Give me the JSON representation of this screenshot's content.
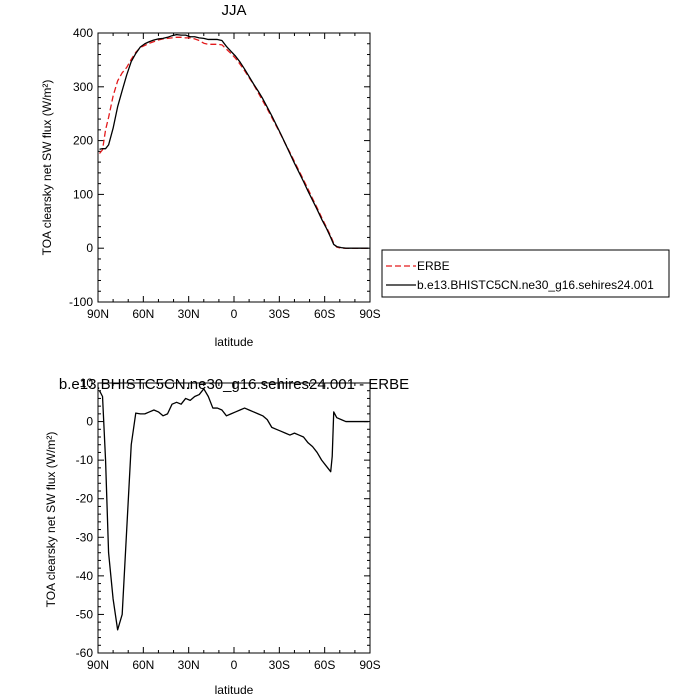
{
  "chart_data": [
    {
      "type": "line",
      "title": "JJA",
      "xlabel": "latitude",
      "ylabel": "TOA clearsky net SW flux (W/m²)",
      "xlim": [
        90,
        -90
      ],
      "ylim": [
        -100,
        400
      ],
      "x_tick_values": [
        90,
        60,
        30,
        0,
        -30,
        -60,
        -90
      ],
      "x_tick_labels": [
        "90N",
        "60N",
        "30N",
        "0",
        "30S",
        "60S",
        "90S"
      ],
      "y_tick_values": [
        -100,
        0,
        100,
        200,
        300,
        400
      ],
      "y_tick_labels": [
        "-100",
        "0",
        "100",
        "200",
        "300",
        "400"
      ],
      "legend_position": "right",
      "series": [
        {
          "name": "ERBE",
          "color": "#e31a1c",
          "dash": "dashed",
          "x": [
            89,
            87,
            85,
            83,
            80,
            77,
            74,
            71,
            68,
            65,
            62,
            59,
            56,
            53,
            50,
            47,
            44,
            41,
            38,
            35,
            32,
            29,
            26,
            23,
            20,
            17,
            14,
            11,
            8,
            5,
            2,
            -1,
            -4,
            -7,
            -10,
            -13,
            -16,
            -19,
            -22,
            -25,
            -28,
            -31,
            -34,
            -37,
            -40,
            -43,
            -46,
            -49,
            -52,
            -55,
            -58,
            -61,
            -64,
            -66,
            -68,
            -71,
            -74,
            -77,
            -80,
            -83,
            -86,
            -89
          ],
          "y": [
            176,
            183,
            220,
            243,
            283,
            311,
            326,
            336,
            351,
            364,
            373,
            377,
            381,
            384,
            387,
            389,
            390,
            391,
            392,
            392,
            391,
            391,
            389,
            386,
            381,
            379,
            379,
            379,
            378,
            370,
            362,
            353,
            342,
            330,
            317,
            304,
            289,
            274,
            259,
            243,
            227,
            211,
            194,
            178,
            161,
            144,
            127,
            110,
            92,
            75,
            57,
            40,
            23,
            9,
            2,
            0,
            0,
            0,
            0,
            0,
            0,
            0
          ]
        },
        {
          "name": "b.e13.BHISTC5CN.ne30_g16.sehires24.001",
          "color": "#000000",
          "dash": "solid",
          "x": [
            89,
            87,
            85,
            83,
            80,
            77,
            74,
            71,
            68,
            65,
            62,
            59,
            56,
            53,
            50,
            47,
            44,
            41,
            38,
            35,
            32,
            29,
            26,
            23,
            20,
            17,
            14,
            11,
            8,
            5,
            2,
            -1,
            -4,
            -7,
            -10,
            -13,
            -16,
            -19,
            -22,
            -25,
            -28,
            -31,
            -34,
            -37,
            -40,
            -43,
            -46,
            -49,
            -52,
            -55,
            -58,
            -61,
            -64,
            -66,
            -68,
            -71,
            -74,
            -77,
            -80,
            -83,
            -86,
            -89
          ],
          "y": [
            184,
            185,
            185,
            192,
            223,
            263,
            293,
            322,
            347,
            362,
            374,
            380,
            384,
            387,
            389,
            390,
            392,
            395,
            397,
            396,
            396,
            393,
            393,
            391,
            390,
            388,
            388,
            388,
            386,
            375,
            366,
            357,
            346,
            333,
            319,
            305,
            292,
            278,
            262,
            246,
            229,
            212,
            194,
            176,
            158,
            141,
            124,
            106,
            89,
            72,
            54,
            38,
            20,
            7,
            3,
            1,
            0,
            0,
            0,
            0,
            0,
            0
          ]
        }
      ]
    },
    {
      "type": "line",
      "title": "b.e13.BHISTC5CN.ne30_g16.sehires24.001 - ERBE",
      "xlabel": "latitude",
      "ylabel": "TOA clearsky net SW flux (W/m²)",
      "xlim": [
        90,
        -90
      ],
      "ylim": [
        -60,
        10
      ],
      "x_tick_values": [
        90,
        60,
        30,
        0,
        -30,
        -60,
        -90
      ],
      "x_tick_labels": [
        "90N",
        "60N",
        "30N",
        "0",
        "30S",
        "60S",
        "90S"
      ],
      "y_tick_values": [
        -60,
        -50,
        -40,
        -30,
        -20,
        -10,
        0,
        10
      ],
      "y_tick_labels": [
        "-60",
        "-50",
        "-40",
        "-30",
        "-20",
        "-10",
        "0",
        "10"
      ],
      "series": [
        {
          "color": "#000000",
          "dash": "solid",
          "x": [
            89,
            87,
            85,
            83,
            80,
            77,
            74,
            71,
            68,
            65,
            62,
            59,
            56,
            53,
            50,
            47,
            44,
            41,
            38,
            35,
            32,
            29,
            26,
            23,
            20,
            17,
            14,
            11,
            8,
            5,
            2,
            -1,
            -4,
            -7,
            -10,
            -13,
            -16,
            -19,
            -22,
            -25,
            -28,
            -31,
            -34,
            -37,
            -40,
            -43,
            -46,
            -49,
            -52,
            -55,
            -58,
            -61,
            -64,
            -65,
            -66,
            -68,
            -71,
            -74,
            -77,
            -80,
            -83,
            -86,
            -89
          ],
          "y": [
            8,
            6.5,
            -10,
            -34,
            -46,
            -54,
            -50,
            -28,
            -6,
            2.2,
            2,
            2,
            2.5,
            3,
            2.5,
            1.5,
            2,
            4.5,
            5,
            4.5,
            6,
            5.5,
            6.5,
            7,
            8.5,
            6.5,
            3.5,
            3.5,
            3,
            1.5,
            2,
            2.5,
            3,
            3.5,
            3,
            2.5,
            2,
            1.5,
            0.5,
            -1.5,
            -2,
            -2.5,
            -3,
            -3.5,
            -3,
            -3.5,
            -4,
            -5.5,
            -6.5,
            -8,
            -10,
            -11.5,
            -13,
            -9,
            2.5,
            1,
            0.5,
            0,
            0,
            0,
            0,
            0,
            0
          ]
        }
      ]
    }
  ]
}
